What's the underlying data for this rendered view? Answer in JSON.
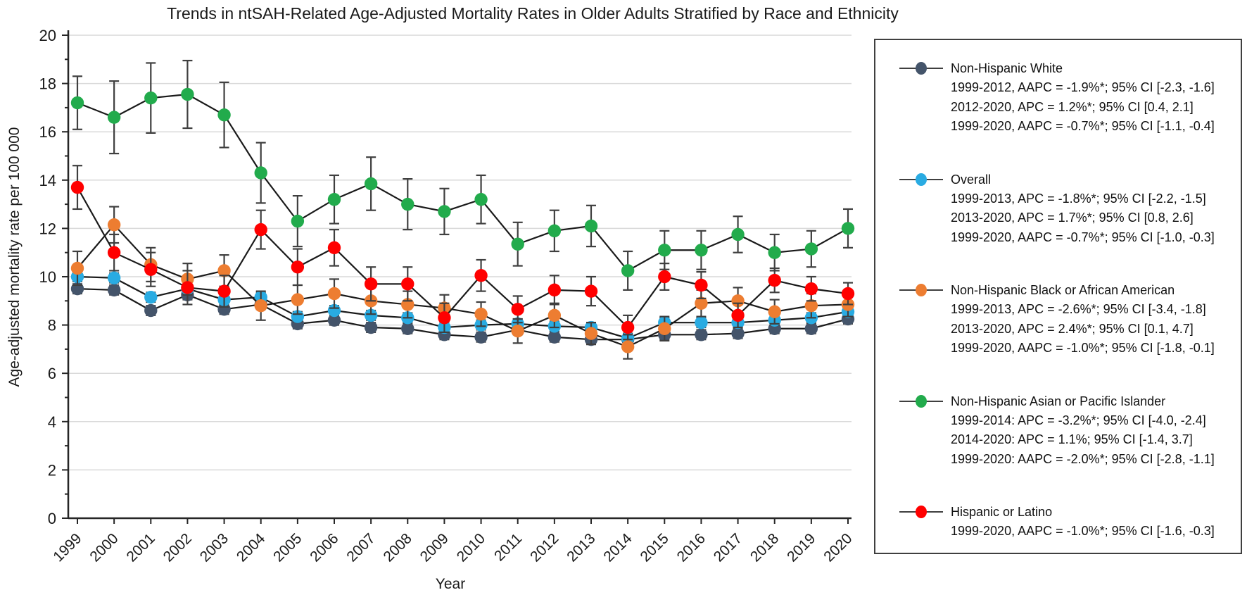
{
  "figure": {
    "title": "Trends in ntSAH-Related Age-Adjusted Mortality Rates in Older Adults Stratified by Race and Ethnicity",
    "x_axis_label": "Year",
    "y_axis_label": "Age-adjusted mortality rate per 100 000"
  },
  "chart_data": {
    "type": "line",
    "title": "Trends in ntSAH-Related Age-Adjusted Mortality Rates in Older Adults Stratified by Race and Ethnicity",
    "xlabel": "Year",
    "ylabel": "Age-adjusted mortality rate per 100 000",
    "x": [
      1999,
      2000,
      2001,
      2002,
      2003,
      2004,
      2005,
      2006,
      2007,
      2008,
      2009,
      2010,
      2011,
      2012,
      2013,
      2014,
      2015,
      2016,
      2017,
      2018,
      2019,
      2020
    ],
    "ylim": [
      0,
      20
    ],
    "ytick_step": 2,
    "grid": true,
    "error_bars": true,
    "legend_position": "right",
    "marker": "circle",
    "line_color": "#1a1a1a",
    "series": [
      {
        "name": "Non-Hispanic White",
        "color": "#44546a",
        "values": [
          9.5,
          9.45,
          8.6,
          9.25,
          8.65,
          8.85,
          8.05,
          8.2,
          7.9,
          7.85,
          7.6,
          7.5,
          7.8,
          7.5,
          7.4,
          7.4,
          7.6,
          7.6,
          7.65,
          7.85,
          7.85,
          8.25
        ],
        "errors": [
          0.2,
          0.2,
          0.2,
          0.2,
          0.2,
          0.2,
          0.2,
          0.2,
          0.2,
          0.2,
          0.2,
          0.2,
          0.2,
          0.2,
          0.2,
          0.2,
          0.2,
          0.2,
          0.2,
          0.2,
          0.2,
          0.2
        ],
        "stats": [
          "1999-2012, AAPC = -1.9%*; 95% CI [-2.3, -1.6]",
          "2012-2020, APC = 1.2%*; 95% CI [0.4, 2.1]",
          "1999-2020, AAPC = -0.7%*; 95% CI [-1.1, -0.4]"
        ]
      },
      {
        "name": "Overall",
        "color": "#29abe2",
        "values": [
          10.0,
          9.95,
          9.15,
          9.5,
          9.05,
          9.15,
          8.35,
          8.6,
          8.4,
          8.3,
          7.9,
          8.0,
          8.05,
          7.95,
          7.9,
          7.45,
          8.1,
          8.1,
          8.1,
          8.2,
          8.3,
          8.55
        ],
        "errors": [
          0.2,
          0.2,
          0.2,
          0.2,
          0.2,
          0.2,
          0.2,
          0.2,
          0.2,
          0.2,
          0.2,
          0.2,
          0.2,
          0.2,
          0.2,
          0.2,
          0.2,
          0.2,
          0.2,
          0.2,
          0.2,
          0.2
        ],
        "stats": [
          "1999-2013, APC = -1.8%*; 95% CI [-2.2, -1.5]",
          "2013-2020, APC = 1.7%*; 95% CI [0.8, 2.6]",
          "1999-2020, AAPC = -0.7%*; 95% CI [-1.0, -0.3]"
        ]
      },
      {
        "name": "Non-Hispanic Black or African American",
        "color": "#ed7d31",
        "values": [
          10.35,
          12.15,
          10.5,
          9.9,
          10.25,
          8.8,
          9.05,
          9.3,
          9.0,
          8.85,
          8.7,
          8.45,
          7.75,
          8.4,
          7.65,
          7.1,
          7.85,
          8.9,
          9.0,
          8.55,
          8.8,
          8.85
        ],
        "errors": [
          0.7,
          0.75,
          0.7,
          0.65,
          0.65,
          0.6,
          0.6,
          0.6,
          0.55,
          0.55,
          0.55,
          0.5,
          0.5,
          0.5,
          0.45,
          0.5,
          0.5,
          0.55,
          0.55,
          0.5,
          0.5,
          0.5
        ],
        "stats": [
          "1999-2013, APC = -2.6%*; 95% CI [-3.4, -1.8]",
          "2013-2020, APC = 2.4%*; 95% CI [0.1, 4.7]",
          "1999-2020, AAPC = -1.0%*; 95% CI [-1.8, -0.1]"
        ]
      },
      {
        "name": "Non-Hispanic Asian or Pacific Islander",
        "color": "#22ab4c",
        "values": [
          17.2,
          16.6,
          17.4,
          17.55,
          16.7,
          14.3,
          12.3,
          13.2,
          13.85,
          13.0,
          12.7,
          13.2,
          11.35,
          11.9,
          12.1,
          10.25,
          11.1,
          11.1,
          11.75,
          11.0,
          11.15,
          12.0
        ],
        "errors": [
          1.1,
          1.5,
          1.45,
          1.4,
          1.35,
          1.25,
          1.05,
          1.0,
          1.1,
          1.05,
          0.95,
          1.0,
          0.9,
          0.85,
          0.85,
          0.8,
          0.8,
          0.8,
          0.75,
          0.75,
          0.75,
          0.8
        ],
        "stats": [
          "1999-2014: APC = -3.2%*; 95% CI [-4.0, -2.4]",
          "2014-2020: APC = 1.1%; 95% CI [-1.4, 3.7]",
          "1999-2020: AAPC = -2.0%*; 95% CI [-2.8, -1.1]"
        ]
      },
      {
        "name": "Hispanic or Latino",
        "color": "#ff0000",
        "values": [
          13.7,
          11.0,
          10.3,
          9.55,
          9.4,
          11.95,
          10.4,
          11.2,
          9.7,
          9.7,
          8.3,
          10.05,
          8.65,
          9.45,
          9.4,
          7.9,
          10.0,
          9.65,
          8.4,
          9.85,
          9.5,
          9.3
        ],
        "errors": [
          0.9,
          0.75,
          0.7,
          0.7,
          0.65,
          0.8,
          0.75,
          0.75,
          0.7,
          0.7,
          0.6,
          0.65,
          0.55,
          0.6,
          0.6,
          0.5,
          0.55,
          0.55,
          0.5,
          0.5,
          0.5,
          0.45
        ],
        "stats": [
          "1999-2020, AAPC = -1.0%*; 95% CI [-1.6, -0.3]"
        ]
      }
    ]
  }
}
